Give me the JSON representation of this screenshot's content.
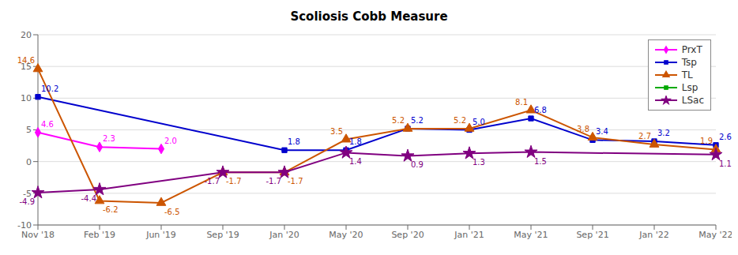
{
  "chart_data": {
    "type": "line",
    "title": "Scoliosis Cobb Measure",
    "categories": [
      "Nov '18",
      "Feb '19",
      "Jun '19",
      "Sep '19",
      "Jan '20",
      "May '20",
      "Sep '20",
      "Jan '21",
      "May '21",
      "Sep '21",
      "Jan '22",
      "May '22"
    ],
    "series": [
      {
        "name": "PrxT",
        "color": "#FF00FF",
        "marker": "diamond",
        "values": [
          4.6,
          2.3,
          2.0,
          null,
          null,
          null,
          null,
          null,
          null,
          null,
          null,
          null
        ],
        "value_labels": [
          "4.6",
          "2.3",
          "2.0",
          null,
          null,
          null,
          null,
          null,
          null,
          null,
          null,
          null
        ]
      },
      {
        "name": "Tsp",
        "color": "#0000CD",
        "marker": "square",
        "values": [
          10.2,
          null,
          null,
          null,
          1.8,
          1.8,
          5.2,
          5.0,
          6.8,
          3.4,
          3.2,
          2.6
        ],
        "value_labels": [
          "10.2",
          null,
          null,
          null,
          "1.8",
          "1.8",
          "5.2",
          "5.0",
          "6.8",
          "3.4",
          "3.2",
          "2.6"
        ]
      },
      {
        "name": "TL",
        "color": "#CC5500",
        "marker": "triangle",
        "values": [
          14.6,
          -6.2,
          -6.5,
          -1.7,
          -1.7,
          3.5,
          5.2,
          5.2,
          8.1,
          3.8,
          2.7,
          1.9
        ]
      },
      {
        "name": "Lsp",
        "color": "#00AA00",
        "marker": "square",
        "values": [
          null,
          null,
          null,
          null,
          null,
          null,
          null,
          null,
          null,
          null,
          null,
          null
        ]
      },
      {
        "name": "LSac",
        "color": "#800080",
        "marker": "star",
        "values": [
          -4.9,
          -4.4,
          null,
          -1.7,
          -1.7,
          1.4,
          0.9,
          1.3,
          1.5,
          null,
          null,
          1.1
        ]
      }
    ],
    "ylim": [
      -10,
      20
    ],
    "yticks": [
      -10,
      -5,
      0,
      5,
      10,
      15,
      20
    ],
    "grid": true,
    "legend": "upper right",
    "data_labels": true
  }
}
